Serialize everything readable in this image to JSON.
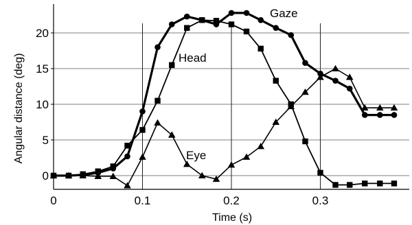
{
  "chart_data": {
    "type": "line",
    "xlabel": "Time (s)",
    "ylabel": "Angular distance (deg)",
    "xlim": [
      0,
      0.4
    ],
    "ylim": [
      -1.5,
      24
    ],
    "xticks": [
      {
        "value": 0,
        "label": "0"
      },
      {
        "value": 0.1,
        "label": "0.1"
      },
      {
        "value": 0.2,
        "label": "0.2"
      },
      {
        "value": 0.3,
        "label": "0.3"
      }
    ],
    "yticks": [
      {
        "value": 0,
        "label": "0"
      },
      {
        "value": 5,
        "label": "5"
      },
      {
        "value": 10,
        "label": "10"
      },
      {
        "value": 15,
        "label": "15"
      },
      {
        "value": 20,
        "label": "20"
      }
    ],
    "grid": {
      "horizontal": true,
      "vertical": true
    },
    "series": [
      {
        "name": "Gaze",
        "marker": "circle",
        "x": [
          0.0,
          0.017,
          0.033,
          0.05,
          0.067,
          0.083,
          0.1,
          0.117,
          0.133,
          0.15,
          0.167,
          0.183,
          0.2,
          0.217,
          0.233,
          0.25,
          0.267,
          0.283,
          0.3,
          0.317,
          0.333,
          0.35,
          0.367,
          0.383
        ],
        "y": [
          0,
          0,
          0.1,
          0.4,
          1.0,
          2.7,
          9.0,
          18.0,
          21.2,
          22.3,
          21.8,
          21.2,
          22.8,
          22.8,
          21.8,
          20.7,
          19.7,
          15.8,
          14.3,
          13.3,
          12.2,
          8.5,
          8.5,
          8.5
        ]
      },
      {
        "name": "Head",
        "marker": "square",
        "x": [
          0.0,
          0.017,
          0.033,
          0.05,
          0.067,
          0.083,
          0.1,
          0.117,
          0.133,
          0.15,
          0.167,
          0.183,
          0.2,
          0.217,
          0.233,
          0.25,
          0.267,
          0.283,
          0.3,
          0.317,
          0.333,
          0.35,
          0.367,
          0.383
        ],
        "y": [
          0,
          0,
          0.2,
          0.6,
          1.3,
          4.2,
          6.4,
          10.5,
          15.5,
          20.7,
          21.8,
          21.7,
          21.2,
          20.2,
          17.8,
          13.3,
          10.0,
          4.8,
          0.4,
          -1.3,
          -1.3,
          -1.1,
          -1.1,
          -1.1
        ]
      },
      {
        "name": "Eye",
        "marker": "triangle",
        "x": [
          0.0,
          0.017,
          0.033,
          0.05,
          0.067,
          0.083,
          0.1,
          0.117,
          0.133,
          0.15,
          0.167,
          0.183,
          0.2,
          0.217,
          0.233,
          0.25,
          0.267,
          0.283,
          0.3,
          0.317,
          0.333,
          0.35,
          0.367,
          0.383
        ],
        "y": [
          0,
          0,
          0,
          -0.1,
          -0.1,
          -1.4,
          2.6,
          7.4,
          5.7,
          1.6,
          0.0,
          -0.5,
          1.5,
          2.6,
          4.1,
          7.5,
          9.7,
          11.7,
          13.8,
          15.0,
          13.8,
          9.5,
          9.5,
          9.5
        ]
      }
    ],
    "annotations": [
      {
        "text": "Gaze",
        "series": "Gaze"
      },
      {
        "text": "Head",
        "series": "Head"
      },
      {
        "text": "Eye",
        "series": "Eye"
      }
    ]
  }
}
